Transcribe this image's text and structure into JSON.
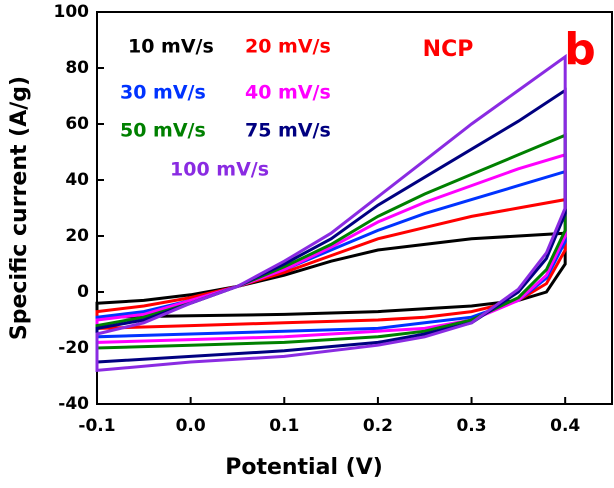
{
  "chart_data": {
    "type": "line",
    "xlabel": "Potential (V)",
    "ylabel": "Specific current (A/g)",
    "annotations": [
      "NCP",
      "b"
    ],
    "x": [
      -0.1,
      -0.05,
      0,
      0.05,
      0.1,
      0.15,
      0.2,
      0.25,
      0.3,
      0.35,
      0.4,
      0.4,
      0.38,
      0.35,
      0.3,
      0.25,
      0.2,
      0.1,
      0,
      -0.1
    ],
    "xlim": [
      -0.1,
      0.45
    ],
    "xticks": [
      -0.1,
      {
        "value": 0,
        "label": "0.0"
      },
      0.1,
      0.2,
      0.3,
      0.4
    ],
    "ylim": [
      -40,
      100
    ],
    "yticks": [
      -40,
      -20,
      0,
      20,
      40,
      60,
      80,
      100
    ],
    "series": [
      {
        "name": "10 mV/s",
        "color": "#000000",
        "values": [
          -4,
          -3,
          -1,
          2,
          6,
          11,
          15,
          17,
          19,
          20,
          21,
          10,
          0,
          -3,
          -5,
          -6,
          -7,
          -8,
          -8.5,
          -9
        ]
      },
      {
        "name": "20 mV/s",
        "color": "#ff0000",
        "values": [
          -7,
          -5,
          -2,
          2,
          7,
          13,
          19,
          23,
          27,
          30,
          33,
          15,
          3,
          -3,
          -7,
          -9,
          -10,
          -11,
          -12,
          -13
        ]
      },
      {
        "name": "30 mV/s",
        "color": "#0033ff",
        "values": [
          -9,
          -7,
          -3,
          2,
          8,
          15,
          22,
          28,
          33,
          38,
          43,
          18,
          5,
          -3,
          -9,
          -11,
          -13,
          -14,
          -15,
          -16
        ]
      },
      {
        "name": "40 mV/s",
        "color": "#ff00ff",
        "values": [
          -10,
          -8,
          -3,
          2,
          8,
          16,
          25,
          32,
          38,
          44,
          49,
          20,
          6,
          -3,
          -10,
          -13,
          -14,
          -16,
          -17,
          -18
        ]
      },
      {
        "name": "50 mV/s",
        "color": "#008000",
        "values": [
          -12,
          -9,
          -4,
          2,
          9,
          17,
          27,
          35,
          42,
          49,
          56,
          22,
          8,
          -2,
          -10,
          -14,
          -16,
          -18,
          -19,
          -20
        ]
      },
      {
        "name": "75 mV/s",
        "color": "#000080",
        "values": [
          -13,
          -10,
          -4,
          2,
          10,
          19,
          31,
          41,
          51,
          61,
          72,
          28,
          12,
          0,
          -11,
          -15,
          -18,
          -21,
          -23,
          -25
        ]
      },
      {
        "name": "100 mV/s",
        "color": "#8a2be2",
        "values": [
          -15,
          -11,
          -4,
          2,
          11,
          21,
          34,
          47,
          60,
          72,
          84,
          30,
          14,
          1,
          -11,
          -16,
          -19,
          -23,
          -25,
          -28
        ]
      }
    ]
  }
}
